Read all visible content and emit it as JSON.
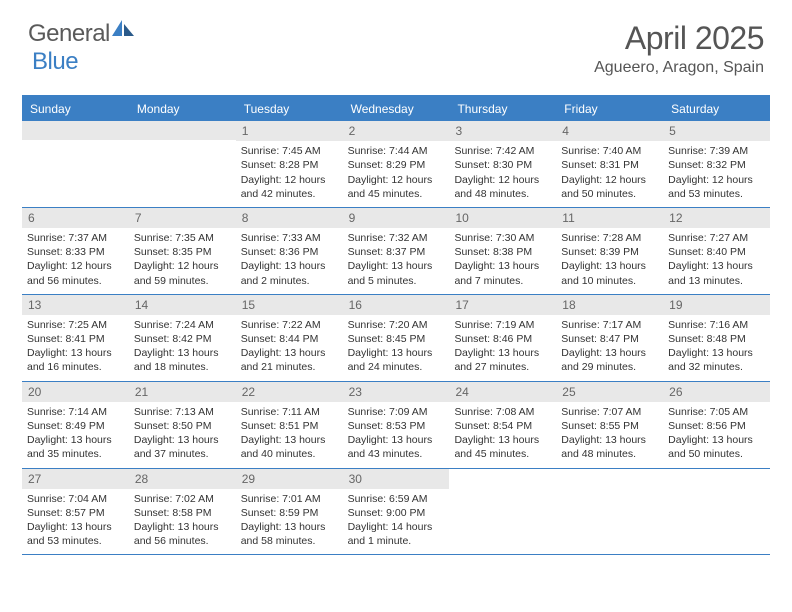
{
  "logo": {
    "text1": "General",
    "text2": "Blue"
  },
  "title": "April 2025",
  "location": "Agueero, Aragon, Spain",
  "weekdays": [
    "Sunday",
    "Monday",
    "Tuesday",
    "Wednesday",
    "Thursday",
    "Friday",
    "Saturday"
  ],
  "colors": {
    "accent": "#3b7fc4",
    "headerBg": "#3b7fc4",
    "dayNumBg": "#e8e8e8",
    "text": "#333333",
    "titleText": "#555555"
  },
  "weeks": [
    [
      null,
      null,
      {
        "n": "1",
        "sunrise": "7:45 AM",
        "sunset": "8:28 PM",
        "daylight": "12 hours and 42 minutes."
      },
      {
        "n": "2",
        "sunrise": "7:44 AM",
        "sunset": "8:29 PM",
        "daylight": "12 hours and 45 minutes."
      },
      {
        "n": "3",
        "sunrise": "7:42 AM",
        "sunset": "8:30 PM",
        "daylight": "12 hours and 48 minutes."
      },
      {
        "n": "4",
        "sunrise": "7:40 AM",
        "sunset": "8:31 PM",
        "daylight": "12 hours and 50 minutes."
      },
      {
        "n": "5",
        "sunrise": "7:39 AM",
        "sunset": "8:32 PM",
        "daylight": "12 hours and 53 minutes."
      }
    ],
    [
      {
        "n": "6",
        "sunrise": "7:37 AM",
        "sunset": "8:33 PM",
        "daylight": "12 hours and 56 minutes."
      },
      {
        "n": "7",
        "sunrise": "7:35 AM",
        "sunset": "8:35 PM",
        "daylight": "12 hours and 59 minutes."
      },
      {
        "n": "8",
        "sunrise": "7:33 AM",
        "sunset": "8:36 PM",
        "daylight": "13 hours and 2 minutes."
      },
      {
        "n": "9",
        "sunrise": "7:32 AM",
        "sunset": "8:37 PM",
        "daylight": "13 hours and 5 minutes."
      },
      {
        "n": "10",
        "sunrise": "7:30 AM",
        "sunset": "8:38 PM",
        "daylight": "13 hours and 7 minutes."
      },
      {
        "n": "11",
        "sunrise": "7:28 AM",
        "sunset": "8:39 PM",
        "daylight": "13 hours and 10 minutes."
      },
      {
        "n": "12",
        "sunrise": "7:27 AM",
        "sunset": "8:40 PM",
        "daylight": "13 hours and 13 minutes."
      }
    ],
    [
      {
        "n": "13",
        "sunrise": "7:25 AM",
        "sunset": "8:41 PM",
        "daylight": "13 hours and 16 minutes."
      },
      {
        "n": "14",
        "sunrise": "7:24 AM",
        "sunset": "8:42 PM",
        "daylight": "13 hours and 18 minutes."
      },
      {
        "n": "15",
        "sunrise": "7:22 AM",
        "sunset": "8:44 PM",
        "daylight": "13 hours and 21 minutes."
      },
      {
        "n": "16",
        "sunrise": "7:20 AM",
        "sunset": "8:45 PM",
        "daylight": "13 hours and 24 minutes."
      },
      {
        "n": "17",
        "sunrise": "7:19 AM",
        "sunset": "8:46 PM",
        "daylight": "13 hours and 27 minutes."
      },
      {
        "n": "18",
        "sunrise": "7:17 AM",
        "sunset": "8:47 PM",
        "daylight": "13 hours and 29 minutes."
      },
      {
        "n": "19",
        "sunrise": "7:16 AM",
        "sunset": "8:48 PM",
        "daylight": "13 hours and 32 minutes."
      }
    ],
    [
      {
        "n": "20",
        "sunrise": "7:14 AM",
        "sunset": "8:49 PM",
        "daylight": "13 hours and 35 minutes."
      },
      {
        "n": "21",
        "sunrise": "7:13 AM",
        "sunset": "8:50 PM",
        "daylight": "13 hours and 37 minutes."
      },
      {
        "n": "22",
        "sunrise": "7:11 AM",
        "sunset": "8:51 PM",
        "daylight": "13 hours and 40 minutes."
      },
      {
        "n": "23",
        "sunrise": "7:09 AM",
        "sunset": "8:53 PM",
        "daylight": "13 hours and 43 minutes."
      },
      {
        "n": "24",
        "sunrise": "7:08 AM",
        "sunset": "8:54 PM",
        "daylight": "13 hours and 45 minutes."
      },
      {
        "n": "25",
        "sunrise": "7:07 AM",
        "sunset": "8:55 PM",
        "daylight": "13 hours and 48 minutes."
      },
      {
        "n": "26",
        "sunrise": "7:05 AM",
        "sunset": "8:56 PM",
        "daylight": "13 hours and 50 minutes."
      }
    ],
    [
      {
        "n": "27",
        "sunrise": "7:04 AM",
        "sunset": "8:57 PM",
        "daylight": "13 hours and 53 minutes."
      },
      {
        "n": "28",
        "sunrise": "7:02 AM",
        "sunset": "8:58 PM",
        "daylight": "13 hours and 56 minutes."
      },
      {
        "n": "29",
        "sunrise": "7:01 AM",
        "sunset": "8:59 PM",
        "daylight": "13 hours and 58 minutes."
      },
      {
        "n": "30",
        "sunrise": "6:59 AM",
        "sunset": "9:00 PM",
        "daylight": "14 hours and 1 minute."
      },
      null,
      null,
      null
    ]
  ],
  "labels": {
    "sunrise": "Sunrise:",
    "sunset": "Sunset:",
    "daylight": "Daylight:"
  }
}
